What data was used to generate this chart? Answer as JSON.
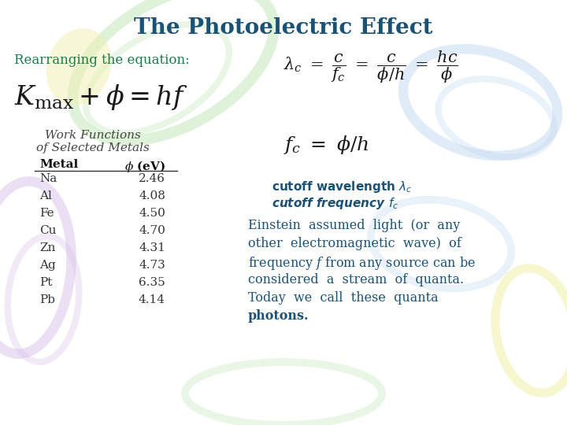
{
  "title": "The Photoelectric Effect",
  "title_color": "#1a5276",
  "title_fontsize": 20,
  "bg_color": "#ffffff",
  "rearranging_text": "Rearranging the equation:",
  "rearranging_color": "#1a7a4a",
  "table_title1": "Work Functions",
  "table_title2": "of Selected Metals",
  "table_header_metal": "Metal",
  "metals": [
    "Na",
    "Al",
    "Fe",
    "Cu",
    "Zn",
    "Ag",
    "Pt",
    "Pb"
  ],
  "phi_values": [
    "2.46",
    "4.08",
    "4.50",
    "4.70",
    "4.31",
    "4.73",
    "6.35",
    "4.14"
  ],
  "text_color": "#1a5276",
  "table_text_color": "#333333",
  "formula_color": "#1a1a1a",
  "swirl_green": "#c8e8c0",
  "swirl_purple": "#d8c0e8",
  "swirl_blue": "#c0d8f0",
  "swirl_yellow": "#f0f0b0"
}
